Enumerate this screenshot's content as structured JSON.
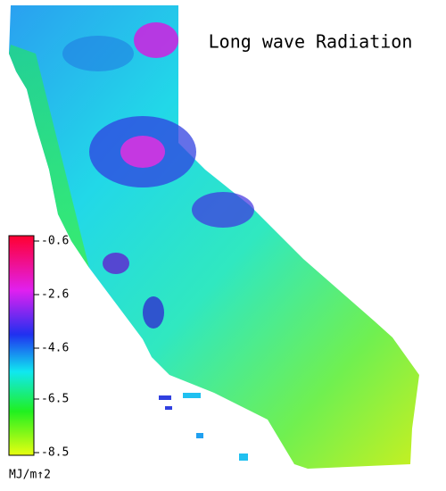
{
  "title": "Long wave Radiation",
  "colorbar": {
    "ticks": [
      -0.6,
      -2.6,
      -4.6,
      -6.5,
      -8.5
    ],
    "label": "MJ/m↑2"
  }
}
